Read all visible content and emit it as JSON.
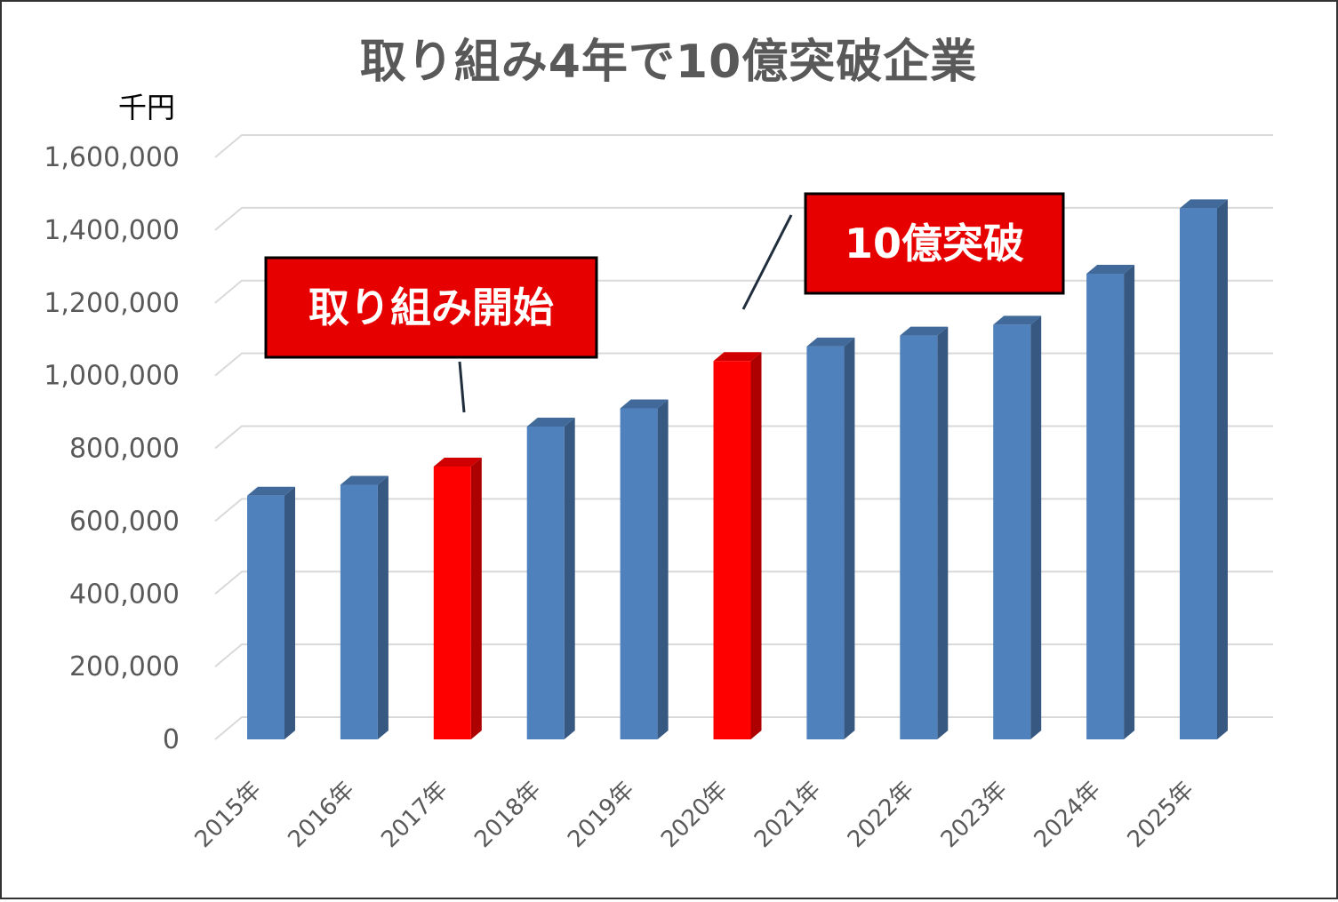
{
  "colors": {
    "bar_default": "#4f81bd",
    "bar_highlight": "#ff0000",
    "callout_fill": "#e60000",
    "grid": "#d9d9d9",
    "text": "#595959"
  },
  "chart_data": {
    "type": "bar",
    "title": "取り組み4年で10億突破企業",
    "unit_label": "千円",
    "xlabel": "",
    "ylabel": "",
    "ylim": [
      0,
      1600000
    ],
    "yticks": [
      0,
      200000,
      400000,
      600000,
      800000,
      1000000,
      1200000,
      1400000,
      1600000
    ],
    "ytick_labels": [
      "0",
      "200,000",
      "400,000",
      "600,000",
      "800,000",
      "1,000,000",
      "1,200,000",
      "1,400,000",
      "1,600,000"
    ],
    "grid": true,
    "legend": "none",
    "categories": [
      "2015年",
      "2016年",
      "2017年",
      "2018年",
      "2019年",
      "2020年",
      "2021年",
      "2022年",
      "2023年",
      "2024年",
      "2025年"
    ],
    "values": [
      670000,
      700000,
      750000,
      860000,
      910000,
      1040000,
      1080000,
      1110000,
      1140000,
      1280000,
      1460000
    ],
    "highlighted": [
      "2017年",
      "2020年"
    ],
    "annotations": [
      {
        "text": "取り組み開始",
        "target": "2017年"
      },
      {
        "text": "10億突破",
        "target": "2020年"
      }
    ]
  }
}
